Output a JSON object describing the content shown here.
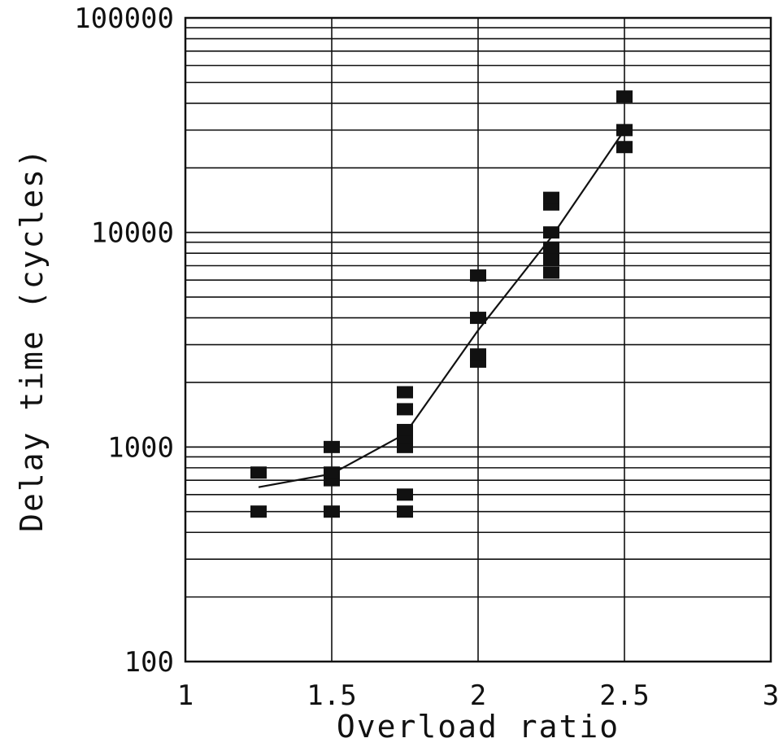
{
  "chart_data": {
    "type": "scatter",
    "title": "",
    "xlabel": "Overload ratio",
    "ylabel": "Delay time (cycles)",
    "xlim": [
      1,
      3
    ],
    "ylim": [
      100,
      100000
    ],
    "yscale": "log",
    "grid": true,
    "x_ticks": [
      "1",
      "1.5",
      "2",
      "2.5",
      "3"
    ],
    "y_ticks": [
      "100",
      "1000",
      "10000",
      "100000"
    ],
    "points": [
      {
        "x": 1.25,
        "y": 500
      },
      {
        "x": 1.25,
        "y": 760
      },
      {
        "x": 1.5,
        "y": 500
      },
      {
        "x": 1.5,
        "y": 700
      },
      {
        "x": 1.5,
        "y": 760
      },
      {
        "x": 1.5,
        "y": 1000
      },
      {
        "x": 1.75,
        "y": 500
      },
      {
        "x": 1.75,
        "y": 600
      },
      {
        "x": 1.75,
        "y": 1000
      },
      {
        "x": 1.75,
        "y": 1100
      },
      {
        "x": 1.75,
        "y": 1200
      },
      {
        "x": 1.75,
        "y": 1500
      },
      {
        "x": 1.75,
        "y": 1800
      },
      {
        "x": 2.0,
        "y": 2500
      },
      {
        "x": 2.0,
        "y": 2700
      },
      {
        "x": 2.0,
        "y": 4000
      },
      {
        "x": 2.0,
        "y": 6300
      },
      {
        "x": 2.25,
        "y": 6500
      },
      {
        "x": 2.25,
        "y": 7500
      },
      {
        "x": 2.25,
        "y": 8500
      },
      {
        "x": 2.25,
        "y": 10000
      },
      {
        "x": 2.25,
        "y": 13500
      },
      {
        "x": 2.25,
        "y": 14500
      },
      {
        "x": 2.5,
        "y": 25000
      },
      {
        "x": 2.5,
        "y": 30000
      },
      {
        "x": 2.5,
        "y": 43000
      }
    ],
    "fit_line": {
      "x": [
        1.25,
        1.5,
        1.75,
        2.0,
        2.25,
        2.5
      ],
      "y": [
        650,
        750,
        1150,
        3500,
        9500,
        30000
      ]
    }
  }
}
